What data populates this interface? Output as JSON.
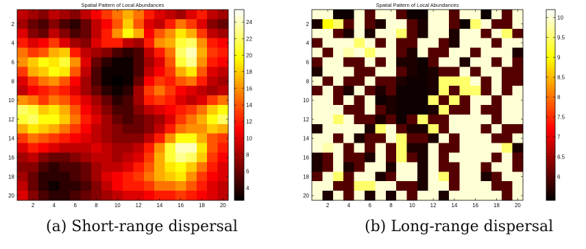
{
  "figures": [
    {
      "caption": "(a) Short-range dispersal"
    },
    {
      "caption": "(b) Long-range dispersal"
    }
  ],
  "colormap": "hot",
  "chart_data": [
    {
      "type": "heatmap",
      "title": "Spatial Pattern of Local Abundances",
      "xlabel": "",
      "ylabel": "",
      "x_ticks": [
        2,
        4,
        6,
        8,
        10,
        12,
        14,
        16,
        18,
        20
      ],
      "y_ticks": [
        2,
        4,
        6,
        8,
        10,
        12,
        14,
        16,
        18,
        20
      ],
      "colorbar_ticks": [
        4,
        6,
        8,
        10,
        12,
        14,
        16,
        18,
        20,
        22,
        24
      ],
      "clim": [
        2.5,
        25.5
      ],
      "grid_size": [
        20,
        20
      ],
      "values": [
        [
          9,
          8,
          7,
          9,
          8,
          7,
          9,
          11,
          13,
          15,
          17,
          15,
          12,
          10,
          9,
          8,
          10,
          12,
          9,
          8
        ],
        [
          8,
          6,
          5,
          7,
          5,
          4,
          6,
          9,
          11,
          14,
          18,
          14,
          10,
          9,
          12,
          15,
          13,
          10,
          7,
          6
        ],
        [
          10,
          7,
          6,
          9,
          7,
          5,
          6,
          9,
          12,
          16,
          20,
          17,
          11,
          14,
          16,
          19,
          17,
          13,
          9,
          8
        ],
        [
          12,
          10,
          11,
          13,
          10,
          8,
          7,
          10,
          12,
          12,
          9,
          8,
          12,
          16,
          17,
          21,
          22,
          16,
          12,
          11
        ],
        [
          15,
          13,
          14,
          17,
          18,
          12,
          9,
          8,
          7,
          5,
          4,
          5,
          9,
          12,
          15,
          22,
          24,
          17,
          13,
          12
        ],
        [
          16,
          18,
          20,
          19,
          21,
          16,
          10,
          6,
          4,
          3,
          3,
          5,
          8,
          10,
          14,
          21,
          23,
          16,
          12,
          11
        ],
        [
          13,
          17,
          18,
          20,
          19,
          14,
          9,
          5,
          3,
          3,
          3,
          5,
          9,
          11,
          13,
          17,
          19,
          14,
          10,
          9
        ],
        [
          10,
          13,
          15,
          16,
          14,
          11,
          8,
          5,
          3,
          2.5,
          3,
          6,
          11,
          13,
          12,
          14,
          15,
          12,
          9,
          8
        ],
        [
          9,
          11,
          12,
          13,
          12,
          10,
          8,
          6,
          4,
          3,
          4,
          8,
          13,
          15,
          13,
          11,
          10,
          9,
          8,
          9
        ],
        [
          16,
          15,
          13,
          15,
          14,
          12,
          10,
          8,
          6,
          4,
          5,
          8,
          12,
          13,
          12,
          10,
          9,
          10,
          13,
          15
        ],
        [
          22,
          21,
          18,
          19,
          17,
          14,
          11,
          9,
          7,
          5,
          5,
          7,
          9,
          10,
          11,
          12,
          13,
          15,
          18,
          20
        ],
        [
          21,
          22,
          20,
          20,
          18,
          15,
          12,
          10,
          8,
          6,
          5,
          6,
          7,
          8,
          10,
          13,
          15,
          17,
          20,
          22
        ],
        [
          17,
          19,
          18,
          17,
          15,
          13,
          11,
          9,
          8,
          7,
          6,
          6,
          7,
          9,
          12,
          15,
          16,
          16,
          18,
          17
        ],
        [
          13,
          15,
          14,
          13,
          12,
          11,
          10,
          9,
          8,
          7,
          7,
          7,
          9,
          12,
          16,
          20,
          20,
          17,
          14,
          13
        ],
        [
          10,
          12,
          11,
          10,
          9,
          9,
          9,
          10,
          9,
          8,
          8,
          9,
          12,
          16,
          21,
          24,
          24,
          19,
          14,
          12
        ],
        [
          8,
          9,
          7,
          6,
          6,
          7,
          8,
          9,
          9,
          8,
          9,
          10,
          13,
          17,
          21,
          23,
          22,
          18,
          13,
          11
        ],
        [
          7,
          7,
          5,
          4,
          5,
          5,
          6,
          8,
          9,
          9,
          10,
          12,
          14,
          17,
          19,
          20,
          18,
          15,
          12,
          10
        ],
        [
          8,
          6,
          4,
          4,
          4,
          5,
          6,
          8,
          10,
          11,
          12,
          13,
          15,
          17,
          18,
          19,
          16,
          13,
          11,
          10
        ],
        [
          9,
          6,
          4,
          3,
          4,
          4,
          5,
          7,
          9,
          11,
          12,
          12,
          13,
          15,
          15,
          16,
          14,
          12,
          10,
          9
        ],
        [
          10,
          7,
          5,
          4,
          4,
          5,
          6,
          7,
          8,
          9,
          10,
          10,
          11,
          12,
          12,
          13,
          12,
          11,
          10,
          9
        ]
      ]
    },
    {
      "type": "heatmap",
      "title": "Spatial Pattern of Local Abundances",
      "xlabel": "",
      "ylabel": "",
      "x_ticks": [
        2,
        4,
        6,
        8,
        10,
        12,
        14,
        16,
        18,
        20
      ],
      "y_ticks": [
        2,
        4,
        6,
        8,
        10,
        12,
        14,
        16,
        18,
        20
      ],
      "colorbar_ticks": [
        6,
        6.5,
        7,
        7.5,
        8,
        8.5,
        9,
        9.5,
        10
      ],
      "colorbar_tick_labels": [
        "6",
        "6.5",
        "7",
        "7.5",
        "8",
        "8.5",
        "9",
        "9.5",
        "10"
      ],
      "clim": [
        5.4,
        10.2
      ],
      "grid_size": [
        20,
        20
      ],
      "values": [
        [
          10,
          10,
          5.5,
          5.5,
          10,
          6,
          10,
          10,
          6,
          5.5,
          5.5,
          10,
          10,
          6,
          10,
          10,
          5.5,
          10,
          6,
          10
        ],
        [
          5.6,
          9,
          9.5,
          6,
          10,
          6,
          5.6,
          10,
          10,
          6,
          5.6,
          10,
          10,
          6,
          5.5,
          9.5,
          10,
          6,
          6,
          10
        ],
        [
          10,
          10,
          6,
          5.6,
          10,
          5.6,
          10,
          10,
          9.5,
          6,
          5.6,
          10,
          10,
          5.6,
          10,
          10,
          6,
          10,
          9.5,
          6
        ],
        [
          6,
          10,
          10,
          10,
          9.5,
          10,
          6,
          10,
          6,
          6,
          10,
          10,
          6,
          5.6,
          10,
          10,
          10,
          6,
          10,
          10
        ],
        [
          10,
          6,
          10,
          9.8,
          10,
          9.5,
          10,
          10,
          6,
          5.6,
          10,
          6,
          6,
          10,
          10,
          6,
          10,
          10,
          10,
          5.6
        ],
        [
          6,
          10,
          10,
          6,
          6,
          10,
          6,
          10,
          5.6,
          5.6,
          5.5,
          6,
          10,
          10,
          5.6,
          10,
          10,
          6,
          10,
          6
        ],
        [
          5.6,
          10,
          10,
          10,
          6,
          6,
          10,
          10,
          6,
          5.6,
          5.5,
          5.6,
          6,
          6,
          10,
          6,
          10,
          10,
          6,
          6
        ],
        [
          10,
          6,
          10,
          6,
          6,
          10,
          6,
          6,
          5.6,
          5.5,
          5.5,
          5.6,
          9.5,
          9.5,
          9.5,
          10,
          6,
          10,
          6,
          6
        ],
        [
          6,
          10,
          6,
          5.6,
          10,
          6,
          5.6,
          6,
          5.5,
          5.5,
          5.5,
          5.6,
          9.5,
          6,
          9.5,
          9.5,
          6,
          10,
          6,
          10
        ],
        [
          10,
          10,
          6,
          10,
          6,
          10,
          5.5,
          5.6,
          5.5,
          5.5,
          5.5,
          9.5,
          6,
          9.5,
          6,
          10,
          10,
          6,
          10,
          10
        ],
        [
          10,
          10,
          10,
          6,
          6,
          10,
          6,
          5.6,
          5.5,
          5.5,
          5.5,
          5.6,
          9.5,
          6,
          6,
          10,
          6,
          6,
          10,
          10
        ],
        [
          10,
          10,
          9.5,
          10,
          6,
          6,
          5.6,
          6,
          5.5,
          6,
          9.5,
          6,
          6,
          10,
          10,
          10,
          10,
          6,
          10,
          10
        ],
        [
          5.6,
          10,
          10,
          10,
          10,
          5.6,
          9.5,
          10,
          6,
          5.6,
          5.6,
          9.5,
          6,
          10,
          10,
          10,
          6,
          10,
          6,
          6
        ],
        [
          10,
          10,
          6,
          10,
          5.6,
          6,
          6,
          10,
          9.5,
          6,
          6,
          5.6,
          10,
          6,
          10,
          10,
          10,
          6,
          6,
          10
        ],
        [
          10,
          9.8,
          10,
          6,
          10,
          6,
          10,
          6,
          9.5,
          5.6,
          5.6,
          10,
          6,
          6,
          10,
          10,
          10,
          10,
          9.5,
          5.6
        ],
        [
          5.6,
          6,
          10,
          6,
          6,
          5.6,
          10,
          6,
          9.5,
          6,
          5.6,
          10,
          6,
          10,
          10,
          10,
          10,
          6,
          10,
          6
        ],
        [
          5.6,
          6,
          10,
          5.6,
          6,
          10,
          10,
          5.6,
          10,
          10,
          5.6,
          10,
          6,
          6,
          10,
          10,
          6,
          10,
          10,
          6
        ],
        [
          6,
          10,
          9.5,
          6,
          10,
          10,
          5.6,
          6,
          10,
          10,
          5.6,
          10,
          9.5,
          6,
          10,
          10,
          5.6,
          6,
          10,
          10
        ],
        [
          10,
          10,
          6,
          6,
          9.5,
          9.5,
          10,
          10,
          6,
          6,
          5.6,
          10,
          10,
          6,
          10,
          10,
          10,
          6,
          6,
          10
        ],
        [
          10,
          5.6,
          10,
          6,
          10,
          5.6,
          10,
          5.6,
          10,
          6,
          10,
          10,
          5.6,
          10,
          10,
          10,
          10,
          10,
          6,
          10
        ]
      ]
    }
  ]
}
